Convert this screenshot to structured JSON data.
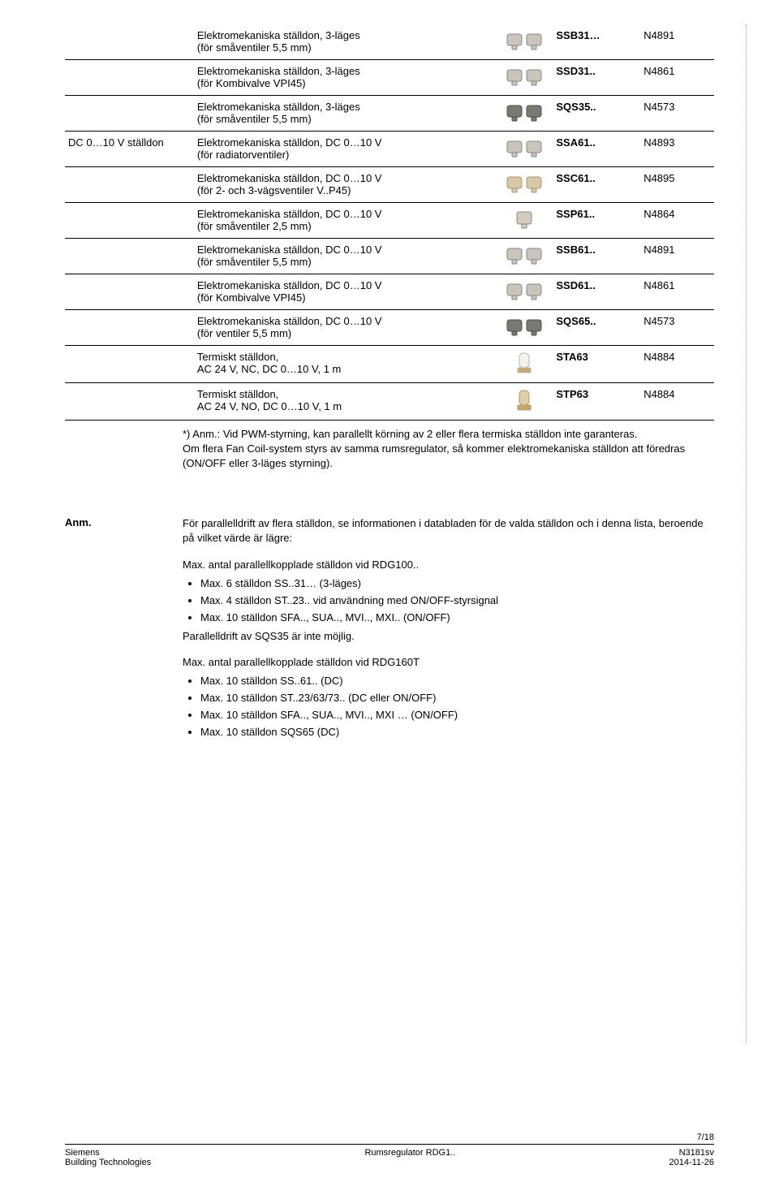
{
  "left_label": "DC 0…10 V ställdon",
  "rows": [
    {
      "desc_l1": "Elektromekaniska ställdon, 3-läges",
      "desc_l2": "(för småventiler 5,5 mm)",
      "code": "SSB31…",
      "ncode": "N4891",
      "icon": "pair-gray"
    },
    {
      "desc_l1": "Elektromekaniska ställdon, 3-läges",
      "desc_l2": "(för Kombivalve VPI45)",
      "code": "SSD31..",
      "ncode": "N4861",
      "icon": "pair-gray"
    },
    {
      "desc_l1": "Elektromekaniska ställdon, 3-läges",
      "desc_l2": "(för småventiler 5,5 mm)",
      "code": "SQS35..",
      "ncode": "N4573",
      "icon": "pair-dark"
    },
    {
      "desc_l1": "Elektromekaniska ställdon, DC 0…10 V",
      "desc_l2": "(för radiatorventiler)",
      "code": "SSA61..",
      "ncode": "N4893",
      "icon": "pair-gray",
      "leftlabel": true
    },
    {
      "desc_l1": "Elektromekaniska ställdon, DC 0…10 V",
      "desc_l2": "(för 2- och 3-vägsventiler V..P45)",
      "code": "SSC61..",
      "ncode": "N4895",
      "icon": "pair-tan"
    },
    {
      "desc_l1": "Elektromekaniska ställdon, DC 0…10 V",
      "desc_l2": "(för småventiler 2,5 mm)",
      "code": "SSP61..",
      "ncode": "N4864",
      "icon": "single"
    },
    {
      "desc_l1": "Elektromekaniska ställdon, DC 0…10 V",
      "desc_l2": "(för småventiler 5,5 mm)",
      "code": "SSB61..",
      "ncode": "N4891",
      "icon": "pair-gray"
    },
    {
      "desc_l1": "Elektromekaniska ställdon, DC 0…10 V",
      "desc_l2": "(för Kombivalve VPI45)",
      "code": "SSD61..",
      "ncode": "N4861",
      "icon": "pair-gray"
    },
    {
      "desc_l1": "Elektromekaniska ställdon, DC 0…10 V",
      "desc_l2": "(för ventiler 5,5 mm)",
      "code": "SQS65..",
      "ncode": "N4573",
      "icon": "pair-dark"
    },
    {
      "desc_l1": "Termiskt ställdon,",
      "desc_l2": "AC 24 V, NC, DC 0…10 V, 1 m",
      "code": "STA63",
      "ncode": "N4884",
      "icon": "thermal-white"
    },
    {
      "desc_l1": "Termiskt ställdon,",
      "desc_l2": "AC 24 V, NO, DC 0…10 V, 1 m",
      "code": "STP63",
      "ncode": "N4884",
      "icon": "thermal-tan"
    }
  ],
  "footnote_l1": "*) Anm.: Vid PWM-styrning, kan parallellt körning av 2 eller flera termiska ställdon inte garanteras.",
  "footnote_l2": "Om flera Fan Coil-system styrs av samma rumsregulator, så kommer elektromekaniska ställdon att föredras (ON/OFF eller 3-läges styrning).",
  "note_label": "Anm.",
  "note_intro": "För parallelldrift av flera ställdon, se informationen i databladen för de valda ställdon och i denna lista, beroende på vilket värde är lägre:",
  "note_head1": "Max. antal parallellkopplade ställdon vid RDG100..",
  "note_list1": [
    "Max.  6 ställdon SS..31… (3-läges)",
    "Max.  4 ställdon ST..23.. vid användning med ON/OFF-styrsignal",
    "Max.  10 ställdon SFA.., SUA.., MVI.., MXI.. (ON/OFF)"
  ],
  "note_after1": "Parallelldrift av SQS35 är inte möjlig.",
  "note_head2": "Max. antal parallellkopplade ställdon vid RDG160T",
  "note_list2": [
    "Max. 10 ställdon SS..61.. (DC)",
    "Max. 10 ställdon ST..23/63/73.. (DC eller ON/OFF)",
    "Max. 10 ställdon SFA.., SUA.., MVI..,  MXI … (ON/OFF)",
    "Max. 10 ställdon SQS65 (DC)"
  ],
  "footer": {
    "page": "7/18",
    "left_l1": "Siemens",
    "left_l2": "Building Technologies",
    "center": "Rumsregulator RDG1..",
    "right_l1": "N3181sv",
    "right_l2": "2014-11-26"
  },
  "icons": {
    "pair-gray": {
      "fill": "#c9c5bd",
      "stroke": "#8a877f"
    },
    "pair-tan": {
      "fill": "#d7c9a8",
      "stroke": "#a99873"
    },
    "pair-dark": {
      "fill": "#7b7a72",
      "stroke": "#4d4c46"
    },
    "single": {
      "fill": "#d2ccc0",
      "stroke": "#8a877f"
    },
    "thermal-white": {
      "fill": "#f4f2ed",
      "stroke": "#bab6ac",
      "base": "#c8a86a"
    },
    "thermal-tan": {
      "fill": "#e0cfa6",
      "stroke": "#b39a66",
      "base": "#c8a86a"
    }
  }
}
